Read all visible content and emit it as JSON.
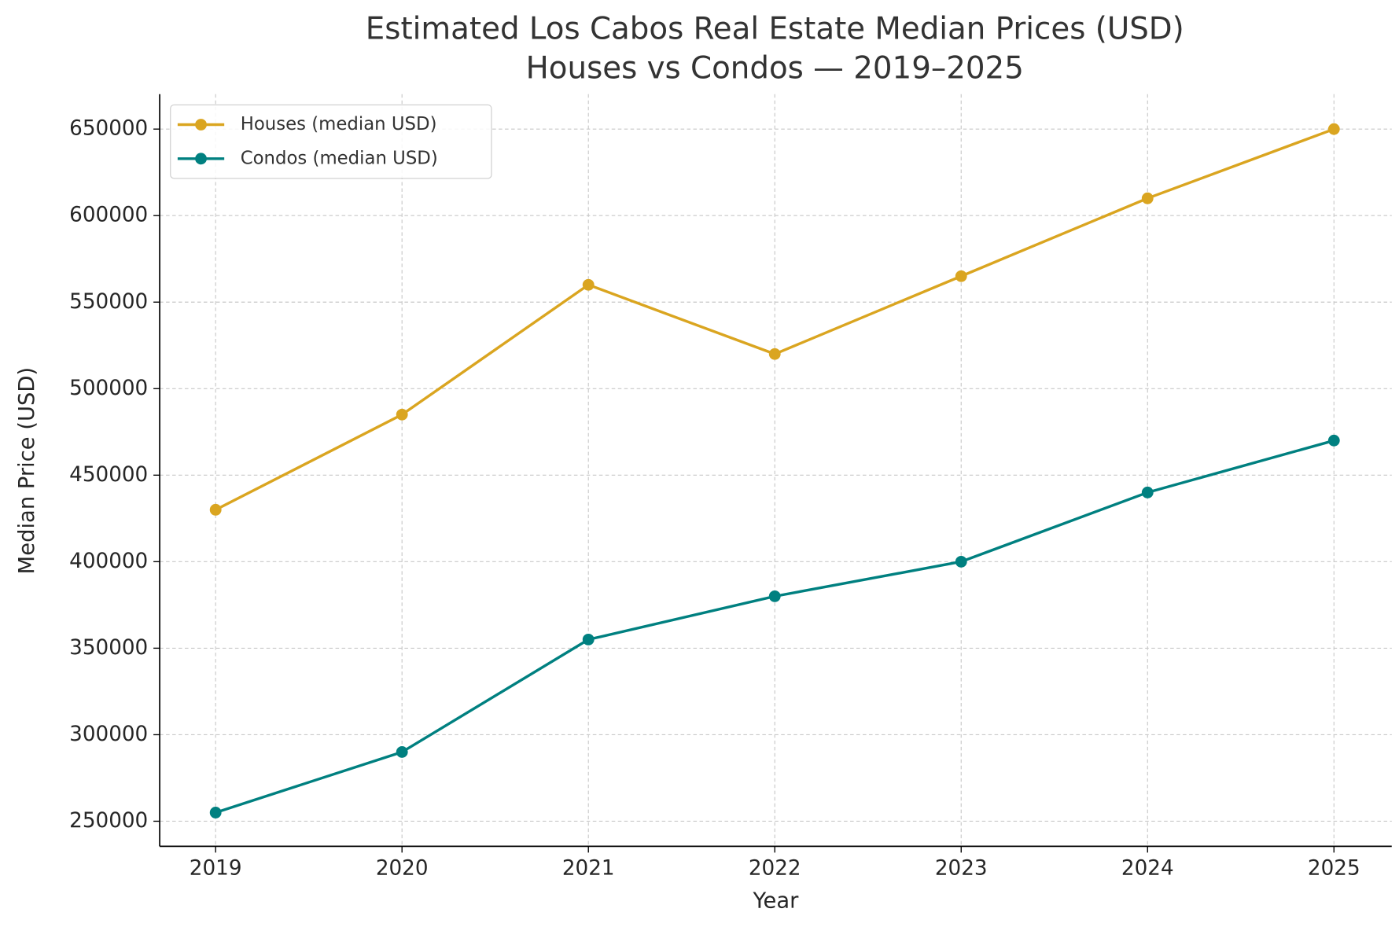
{
  "chart_data": {
    "type": "line",
    "title": [
      "Estimated Los Cabos Real Estate Median Prices (USD)",
      "Houses vs Condos — 2019–2025"
    ],
    "x_label": "Year",
    "y_label": "Median Price (USD)",
    "x": [
      2019,
      2020,
      2021,
      2022,
      2023,
      2024,
      2025
    ],
    "series": [
      {
        "name": "Houses (median USD)",
        "color": "#DAA520",
        "values": [
          430000,
          485000,
          560000,
          520000,
          565000,
          610000,
          650000
        ]
      },
      {
        "name": "Condos (median USD)",
        "color": "#008080",
        "values": [
          255000,
          290000,
          355000,
          380000,
          400000,
          440000,
          470000
        ]
      }
    ],
    "xlim": [
      2018.7,
      2025.31
    ],
    "xticks": [
      2019,
      2020,
      2021,
      2022,
      2023,
      2024,
      2025
    ],
    "ylim": [
      235500,
      670200
    ],
    "yticks": [
      250000,
      300000,
      350000,
      400000,
      450000,
      500000,
      550000,
      600000,
      650000
    ],
    "grid": true,
    "legend": "upper-left"
  }
}
